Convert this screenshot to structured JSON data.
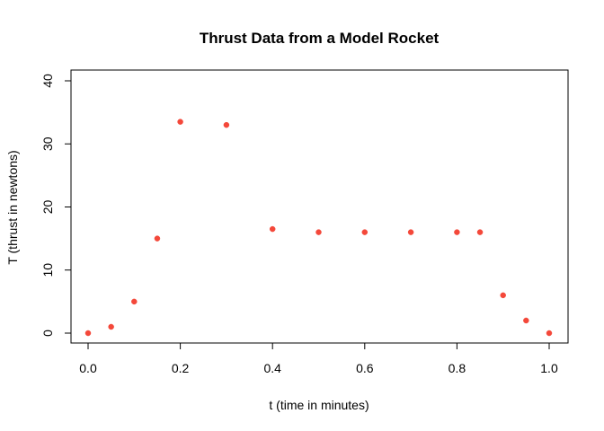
{
  "chart_data": {
    "type": "scatter",
    "title": "Thrust Data from a Model Rocket",
    "xlabel": "t (time in minutes)",
    "ylabel": "T (thrust in newtons)",
    "xlim": [
      0,
      1
    ],
    "ylim": [
      0,
      40
    ],
    "x_ticks": [
      "0.0",
      "0.2",
      "0.4",
      "0.6",
      "0.8",
      "1.0"
    ],
    "y_ticks": [
      "0",
      "10",
      "20",
      "30",
      "40"
    ],
    "grid": false,
    "legend": "none",
    "point_color": "#f4483a",
    "points": [
      {
        "x": 0.0,
        "y": 0
      },
      {
        "x": 0.05,
        "y": 1
      },
      {
        "x": 0.1,
        "y": 5
      },
      {
        "x": 0.15,
        "y": 15
      },
      {
        "x": 0.2,
        "y": 33.5
      },
      {
        "x": 0.3,
        "y": 33
      },
      {
        "x": 0.4,
        "y": 16.5
      },
      {
        "x": 0.5,
        "y": 16
      },
      {
        "x": 0.6,
        "y": 16
      },
      {
        "x": 0.7,
        "y": 16
      },
      {
        "x": 0.8,
        "y": 16
      },
      {
        "x": 0.85,
        "y": 16
      },
      {
        "x": 0.9,
        "y": 6
      },
      {
        "x": 0.95,
        "y": 2
      },
      {
        "x": 1.0,
        "y": 0
      }
    ]
  }
}
